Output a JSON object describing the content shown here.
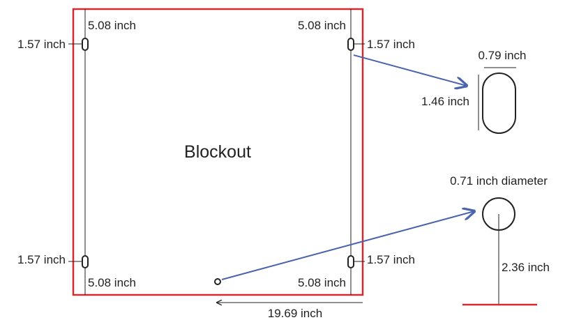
{
  "diagram": {
    "center_label": "Blockout",
    "dims": {
      "top_left_vertical": "5.08 inch",
      "top_right_vertical": "5.08 inch",
      "bottom_left_vertical": "5.08 inch",
      "bottom_right_vertical": "5.08 inch",
      "top_left_horizontal": "1.57 inch",
      "top_right_horizontal": "1.57 inch",
      "bottom_left_horizontal": "1.57 inch",
      "bottom_right_horizontal": "1.57 inch",
      "total_width": "19.69 inch",
      "slot_width": "0.79 inch",
      "slot_height": "1.46 inch",
      "hole_diameter": "0.71 inch diameter",
      "hole_height": "2.36 inch"
    },
    "colors": {
      "outline": "#d42a2f",
      "callout": "#4a63ad",
      "ink": "#222222"
    }
  }
}
